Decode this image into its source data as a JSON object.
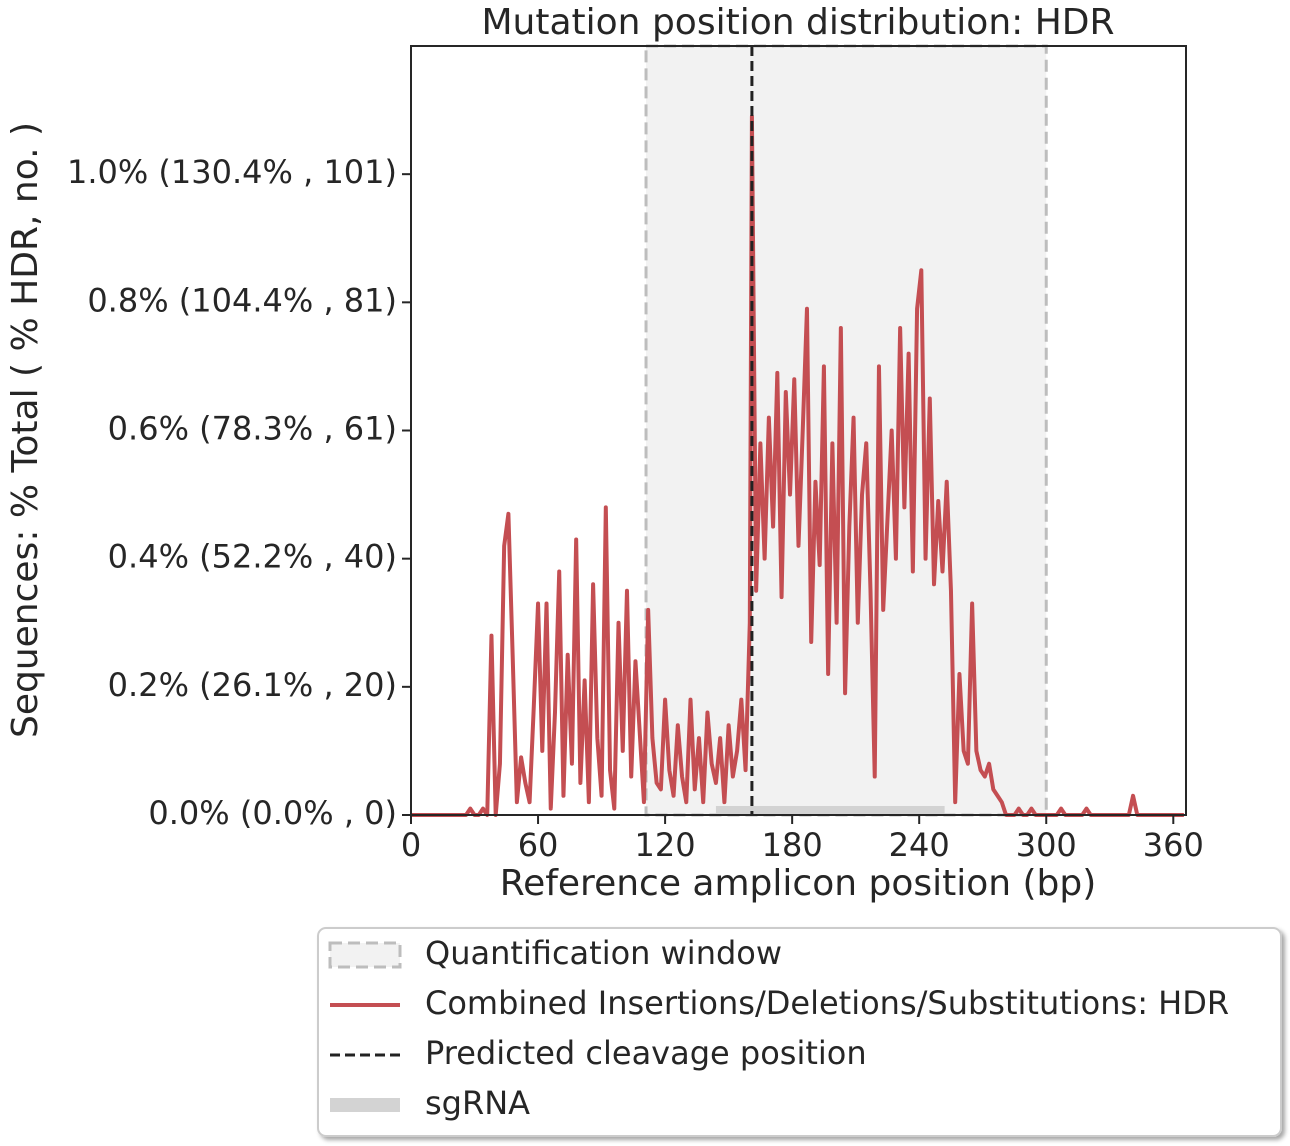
{
  "chart_data": {
    "type": "line",
    "title": "Mutation position distribution: HDR",
    "x_label": "Reference amplicon position (bp)",
    "y_label": "Sequences: % Total ( % HDR, no. )",
    "xlim": [
      0,
      366
    ],
    "ylim": [
      0,
      1.2
    ],
    "xticks": [
      0,
      60,
      120,
      180,
      240,
      300,
      360
    ],
    "yticks": [
      {
        "value": 0,
        "label": "0.0% (0.0% , 0)"
      },
      {
        "value": 0.2,
        "label": "0.2% (26.1% , 20)"
      },
      {
        "value": 0.4,
        "label": "0.4% (52.2% , 40)"
      },
      {
        "value": 0.6,
        "label": "0.6% (78.3% , 61)"
      },
      {
        "value": 0.8,
        "label": "0.8% (104.4% , 81)"
      },
      {
        "value": 1.0,
        "label": "1.0% (130.4% , 101)"
      }
    ],
    "legend": "lower center",
    "quantification_window": {
      "name": "Quantification window",
      "range": [
        111,
        300
      ],
      "color": "#bdbdbd"
    },
    "series": [
      {
        "name": "Combined Insertions/Deletions/Substitutions: HDR",
        "color": "#c44e52",
        "x": [
          0,
          2,
          4,
          6,
          8,
          10,
          12,
          14,
          16,
          18,
          20,
          22,
          24,
          26,
          28,
          30,
          32,
          34,
          36,
          38,
          40,
          42,
          44,
          46,
          48,
          50,
          52,
          54,
          56,
          58,
          60,
          62,
          64,
          66,
          68,
          70,
          72,
          74,
          76,
          78,
          80,
          82,
          84,
          86,
          88,
          90,
          92,
          94,
          96,
          98,
          100,
          102,
          104,
          106,
          108,
          110,
          112,
          114,
          116,
          118,
          120,
          122,
          124,
          126,
          128,
          130,
          132,
          134,
          136,
          138,
          140,
          142,
          144,
          146,
          148,
          150,
          152,
          154,
          156,
          158,
          160,
          161,
          163,
          165,
          167,
          169,
          171,
          173,
          175,
          177,
          179,
          181,
          183,
          185,
          187,
          189,
          191,
          193,
          195,
          197,
          199,
          201,
          203,
          205,
          207,
          209,
          211,
          213,
          215,
          217,
          219,
          221,
          223,
          225,
          227,
          229,
          231,
          233,
          235,
          237,
          239,
          241,
          243,
          245,
          247,
          249,
          251,
          253,
          255,
          257,
          259,
          261,
          263,
          265,
          267,
          269,
          271,
          273,
          275,
          277,
          279,
          281,
          283,
          285,
          287,
          289,
          291,
          293,
          295,
          297,
          299,
          301,
          303,
          305,
          307,
          309,
          311,
          313,
          315,
          317,
          319,
          321,
          323,
          325,
          327,
          329,
          331,
          333,
          335,
          337,
          339,
          341,
          343,
          345,
          347,
          349,
          351,
          353,
          355,
          357,
          359,
          361,
          363,
          365
        ],
        "values": [
          0,
          0,
          0,
          0,
          0,
          0,
          0,
          0,
          0,
          0,
          0,
          0,
          0,
          0,
          0.01,
          0,
          0,
          0.01,
          0,
          0.28,
          0,
          0.08,
          0.42,
          0.47,
          0.25,
          0.02,
          0.09,
          0.05,
          0.02,
          0.17,
          0.33,
          0.1,
          0.33,
          0.01,
          0.16,
          0.38,
          0.03,
          0.25,
          0.08,
          0.43,
          0.05,
          0.21,
          0.02,
          0.36,
          0.12,
          0.03,
          0.48,
          0.07,
          0.01,
          0.3,
          0.1,
          0.35,
          0.06,
          0.24,
          0.13,
          0.02,
          0.32,
          0.12,
          0.05,
          0.04,
          0.18,
          0.07,
          0.03,
          0.14,
          0.06,
          0.02,
          0.18,
          0.04,
          0.12,
          0.02,
          0.16,
          0.08,
          0.05,
          0.12,
          0.02,
          0.14,
          0.06,
          0.1,
          0.18,
          0.07,
          0.3,
          1.09,
          0.35,
          0.58,
          0.4,
          0.62,
          0.45,
          0.69,
          0.34,
          0.66,
          0.5,
          0.68,
          0.42,
          0.6,
          0.79,
          0.27,
          0.52,
          0.39,
          0.7,
          0.22,
          0.58,
          0.3,
          0.76,
          0.19,
          0.45,
          0.62,
          0.3,
          0.5,
          0.58,
          0.35,
          0.06,
          0.7,
          0.32,
          0.46,
          0.6,
          0.4,
          0.76,
          0.48,
          0.72,
          0.38,
          0.79,
          0.85,
          0.4,
          0.65,
          0.36,
          0.49,
          0.38,
          0.52,
          0.35,
          0.02,
          0.22,
          0.1,
          0.08,
          0.33,
          0.1,
          0.07,
          0.06,
          0.08,
          0.04,
          0.03,
          0.02,
          0,
          0,
          0,
          0.01,
          0,
          0,
          0.01,
          0,
          0,
          0,
          0,
          0,
          0,
          0.01,
          0,
          0,
          0,
          0,
          0,
          0.01,
          0,
          0,
          0,
          0,
          0,
          0,
          0,
          0,
          0,
          0,
          0.03,
          0,
          0,
          0,
          0,
          0,
          0,
          0,
          0,
          0,
          0,
          0,
          0
        ]
      }
    ],
    "cleavage": {
      "name": "Predicted cleavage position",
      "x": 161,
      "color": "#222222"
    },
    "sgrna": {
      "name": "sgRNA",
      "range": [
        144,
        252
      ],
      "color": "#d3d3d3"
    }
  }
}
